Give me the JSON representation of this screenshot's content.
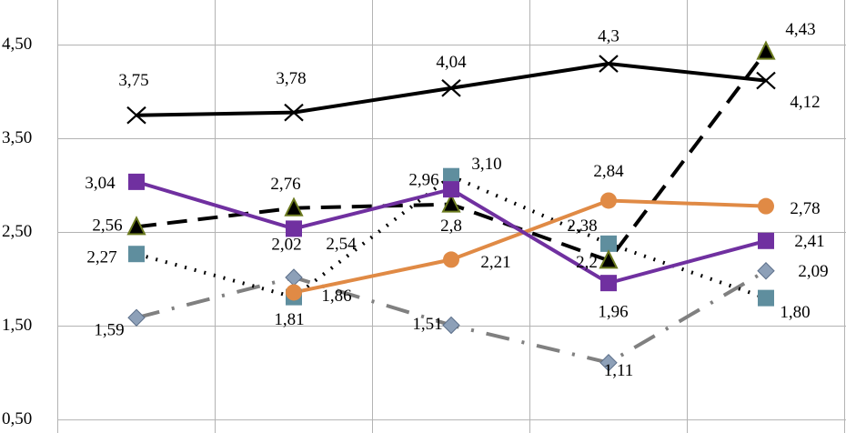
{
  "chart_data": {
    "type": "line",
    "categories": [
      null,
      null,
      null,
      null,
      null
    ],
    "ylim": [
      0.36,
      4.98
    ],
    "yticks": [
      {
        "value": 0.5,
        "label": "0,50"
      },
      {
        "value": 1.5,
        "label": "1,50"
      },
      {
        "value": 2.5,
        "label": "2,50"
      },
      {
        "value": 3.5,
        "label": "3,50"
      },
      {
        "value": 4.5,
        "label": "4,50"
      }
    ],
    "grid": true,
    "series": [
      {
        "color": "#000000",
        "marker": "x",
        "marker_color": "#000000",
        "dash": "solid",
        "values": [
          3.75,
          3.78,
          4.04,
          4.3,
          4.12
        ],
        "value_labels": [
          "3,75",
          "3,78",
          "4,04",
          "4,3",
          "4,12"
        ]
      },
      {
        "color": "#7030a0",
        "marker": "square",
        "marker_color": "#7030a0",
        "dash": "solid",
        "values": [
          3.04,
          2.54,
          2.96,
          1.96,
          2.41
        ],
        "value_labels": [
          "3,04",
          "2,54",
          "2,96",
          "1,96",
          "2,41"
        ]
      },
      {
        "color": "#e08a45",
        "marker": "circle",
        "marker_color": "#e08a45",
        "dash": "solid",
        "values": [
          null,
          1.86,
          2.21,
          2.84,
          2.78
        ],
        "value_labels": [
          null,
          "1,86",
          "2,21",
          "2,84",
          "2,78"
        ]
      },
      {
        "color": "#000000",
        "marker": "triangle",
        "marker_color": "#6b7a1e",
        "dash": "dashed",
        "values": [
          2.56,
          2.76,
          2.8,
          2.2,
          4.43
        ],
        "value_labels": [
          "2,56",
          "2,76",
          "2,8",
          "2,2",
          "4,43"
        ]
      },
      {
        "color": "#000000",
        "marker": "square",
        "marker_color": "#5f8e9e",
        "dash": "dotted",
        "values": [
          2.27,
          1.81,
          3.1,
          2.38,
          1.8
        ],
        "value_labels": [
          "2,27",
          "1,81",
          "3,10",
          "2,38",
          "1,80"
        ]
      },
      {
        "color": "#808080",
        "marker": "diamond",
        "marker_color": "#8da0b8",
        "dash": "dashdot",
        "values": [
          1.59,
          2.02,
          1.51,
          1.11,
          2.09
        ],
        "value_labels": [
          "1,59",
          "2,02",
          "1,51",
          "1,11",
          "2,09"
        ]
      }
    ]
  }
}
